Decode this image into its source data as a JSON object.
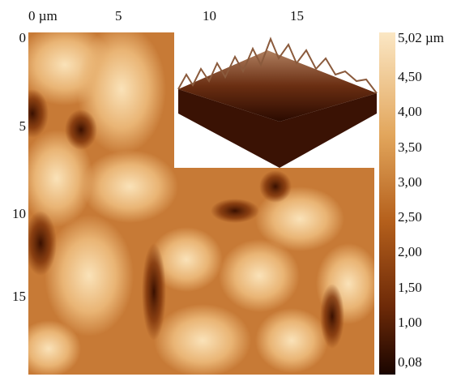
{
  "x_axis": {
    "labels": [
      "0 µm",
      "5",
      "10",
      "15"
    ]
  },
  "y_axis": {
    "labels": [
      "0",
      "5",
      "10",
      "15"
    ]
  },
  "colorbar": {
    "labels": [
      "5,02 µm",
      "4,50",
      "4,00",
      "3,50",
      "3,00",
      "2,50",
      "2,00",
      "1,50",
      "1,00",
      "0,08"
    ]
  }
}
